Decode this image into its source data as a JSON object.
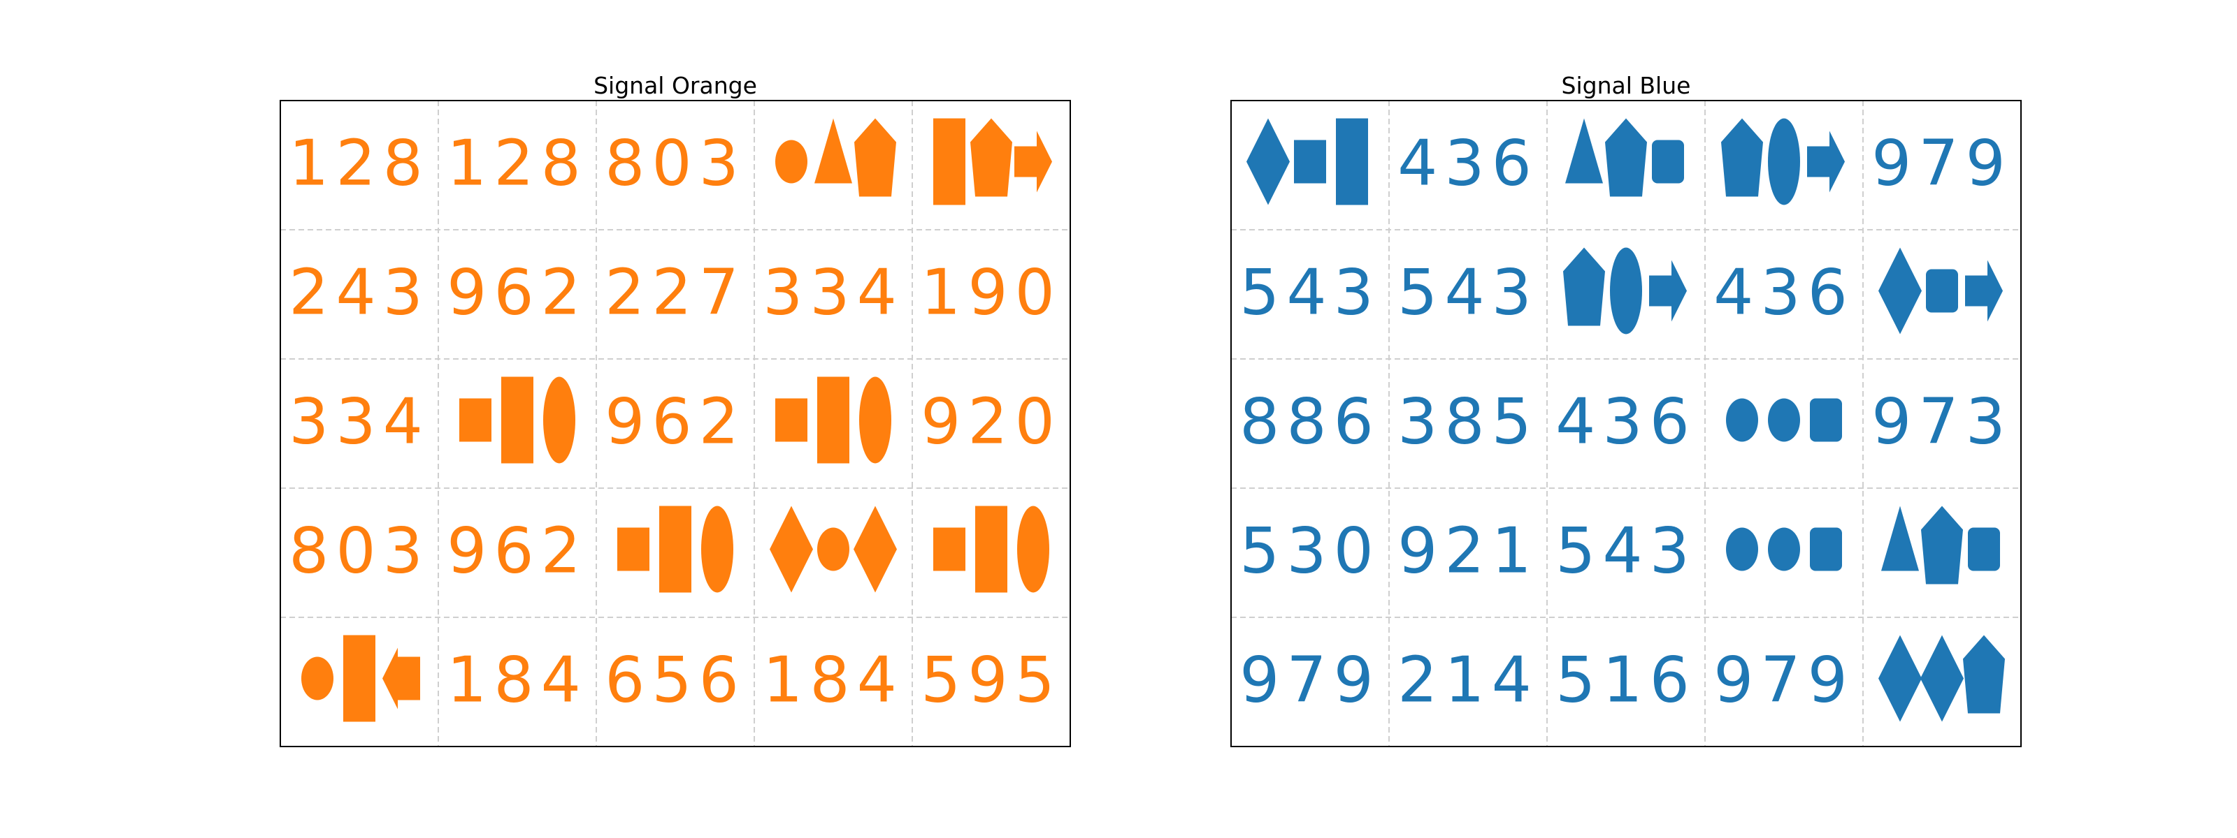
{
  "panels": [
    {
      "title": "Signal Orange",
      "color": "#ff7f0e",
      "cells": [
        {
          "text": "128"
        },
        {
          "text": "128"
        },
        {
          "text": "803"
        },
        {
          "shapes": [
            "ellipse",
            "triangle",
            "pentagon"
          ]
        },
        {
          "shapes": [
            "rectangle-tall",
            "pentagon",
            "arrow-right"
          ]
        },
        {
          "text": "243"
        },
        {
          "text": "962"
        },
        {
          "text": "227"
        },
        {
          "text": "334"
        },
        {
          "text": "190"
        },
        {
          "text": "334"
        },
        {
          "shapes": [
            "square",
            "rectangle-tall",
            "ellipse-tall"
          ]
        },
        {
          "text": "962"
        },
        {
          "shapes": [
            "square",
            "rectangle-tall",
            "ellipse-tall"
          ]
        },
        {
          "text": "920"
        },
        {
          "text": "803"
        },
        {
          "text": "962"
        },
        {
          "shapes": [
            "square",
            "rectangle-tall",
            "ellipse-tall"
          ]
        },
        {
          "shapes": [
            "diamond",
            "ellipse",
            "diamond"
          ]
        },
        {
          "shapes": [
            "square",
            "rectangle-tall",
            "ellipse-tall"
          ]
        },
        {
          "shapes": [
            "ellipse",
            "rectangle-tall",
            "arrow-left"
          ]
        },
        {
          "text": "184"
        },
        {
          "text": "656"
        },
        {
          "text": "184"
        },
        {
          "text": "595"
        }
      ]
    },
    {
      "title": "Signal Blue",
      "color": "#1f77b4",
      "cells": [
        {
          "shapes": [
            "diamond",
            "square",
            "rectangle-tall"
          ]
        },
        {
          "text": "436"
        },
        {
          "shapes": [
            "triangle",
            "pentagon",
            "rounded-square"
          ]
        },
        {
          "shapes": [
            "pentagon",
            "ellipse-tall",
            "arrow-right"
          ]
        },
        {
          "text": "979"
        },
        {
          "text": "543"
        },
        {
          "text": "543"
        },
        {
          "shapes": [
            "pentagon",
            "ellipse-tall",
            "arrow-right"
          ]
        },
        {
          "text": "436"
        },
        {
          "shapes": [
            "diamond",
            "rounded-square",
            "arrow-right"
          ]
        },
        {
          "text": "886"
        },
        {
          "text": "385"
        },
        {
          "text": "436"
        },
        {
          "shapes": [
            "ellipse",
            "ellipse",
            "rounded-square"
          ]
        },
        {
          "text": "973"
        },
        {
          "text": "530"
        },
        {
          "text": "921"
        },
        {
          "text": "543"
        },
        {
          "shapes": [
            "ellipse",
            "ellipse",
            "rounded-square"
          ]
        },
        {
          "shapes": [
            "triangle",
            "pentagon",
            "rounded-square"
          ]
        },
        {
          "text": "979"
        },
        {
          "text": "214"
        },
        {
          "text": "516"
        },
        {
          "text": "979"
        },
        {
          "shapes": [
            "diamond",
            "diamond",
            "pentagon"
          ]
        }
      ]
    }
  ]
}
